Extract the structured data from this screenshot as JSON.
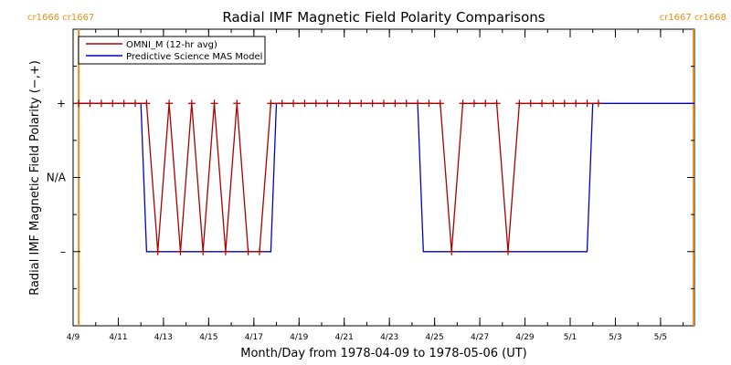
{
  "chart_data": {
    "type": "line",
    "title": "Radial IMF Magnetic Field Polarity Comparisons",
    "xlabel": "Month/Day from 1978-04-09 to 1978-05-06 (UT)",
    "ylabel": "Radial IMF Magnetic Field Polarity (−,+)",
    "x_unit": "date (UT)",
    "xlim": [
      "1978-04-09T00:00",
      "1978-05-06T12:00"
    ],
    "y_ticks": [
      {
        "value": 1,
        "label": "+"
      },
      {
        "value": 0,
        "label": "N/A"
      },
      {
        "value": -1,
        "label": "–"
      }
    ],
    "ylim": [
      -2,
      2
    ],
    "x_tick_labels": [
      "4/9",
      "4/11",
      "4/13",
      "4/15",
      "4/17",
      "4/19",
      "4/21",
      "4/23",
      "4/25",
      "4/27",
      "4/29",
      "5/1",
      "5/3",
      "5/5"
    ],
    "x_tick_dates": [
      "1978-04-09",
      "1978-04-11",
      "1978-04-13",
      "1978-04-15",
      "1978-04-17",
      "1978-04-19",
      "1978-04-21",
      "1978-04-23",
      "1978-04-25",
      "1978-04-27",
      "1978-04-29",
      "1978-05-01",
      "1978-05-03",
      "1978-05-05"
    ],
    "legend_position": "top-left",
    "rotation_markers": [
      {
        "label": "cr1666 cr1667",
        "date": "1978-04-09T06:00",
        "side": "left"
      },
      {
        "label": "cr1667 cr1668",
        "date": "1978-05-06T12:00",
        "side": "right"
      }
    ],
    "series": [
      {
        "name": "OMNI_M (12-hr avg)",
        "color": "#aa0000",
        "marker": "plus",
        "points": [
          [
            "1978-04-09T06:00",
            1
          ],
          [
            "1978-04-09T18:00",
            1
          ],
          [
            "1978-04-10T06:00",
            1
          ],
          [
            "1978-04-10T18:00",
            1
          ],
          [
            "1978-04-11T06:00",
            1
          ],
          [
            "1978-04-11T18:00",
            1
          ],
          [
            "1978-04-12T06:00",
            1
          ],
          [
            "1978-04-12T18:00",
            -1
          ],
          [
            "1978-04-13T06:00",
            1
          ],
          [
            "1978-04-13T18:00",
            -1
          ],
          [
            "1978-04-14T06:00",
            1
          ],
          [
            "1978-04-14T18:00",
            -1
          ],
          [
            "1978-04-15T06:00",
            1
          ],
          [
            "1978-04-15T18:00",
            -1
          ],
          [
            "1978-04-16T06:00",
            1
          ],
          [
            "1978-04-16T18:00",
            -1
          ],
          [
            "1978-04-17T06:00",
            -1
          ],
          [
            "1978-04-17T18:00",
            1
          ],
          [
            "1978-04-18T06:00",
            1
          ],
          [
            "1978-04-18T18:00",
            1
          ],
          [
            "1978-04-19T06:00",
            1
          ],
          [
            "1978-04-19T18:00",
            1
          ],
          [
            "1978-04-20T06:00",
            1
          ],
          [
            "1978-04-20T18:00",
            1
          ],
          [
            "1978-04-21T06:00",
            1
          ],
          [
            "1978-04-21T18:00",
            1
          ],
          [
            "1978-04-22T06:00",
            1
          ],
          [
            "1978-04-22T18:00",
            1
          ],
          [
            "1978-04-23T06:00",
            1
          ],
          [
            "1978-04-23T18:00",
            1
          ],
          [
            "1978-04-24T06:00",
            1
          ],
          [
            "1978-04-24T18:00",
            1
          ],
          [
            "1978-04-25T06:00",
            1
          ],
          [
            "1978-04-25T18:00",
            -1
          ],
          [
            "1978-04-26T06:00",
            1
          ],
          [
            "1978-04-26T18:00",
            1
          ],
          [
            "1978-04-27T06:00",
            1
          ],
          [
            "1978-04-27T18:00",
            1
          ],
          [
            "1978-04-28T06:00",
            -1
          ],
          [
            "1978-04-28T18:00",
            1
          ],
          [
            "1978-04-29T06:00",
            1
          ],
          [
            "1978-04-29T18:00",
            1
          ],
          [
            "1978-04-30T06:00",
            1
          ],
          [
            "1978-04-30T18:00",
            1
          ],
          [
            "1978-05-01T06:00",
            1
          ],
          [
            "1978-05-01T18:00",
            1
          ],
          [
            "1978-05-02T06:00",
            1
          ]
        ]
      },
      {
        "name": "Predictive Science MAS Model",
        "color": "#0000cc",
        "marker": "none",
        "points": [
          [
            "1978-04-09T06:00",
            1
          ],
          [
            "1978-04-12T00:00",
            1
          ],
          [
            "1978-04-12T06:00",
            -1
          ],
          [
            "1978-04-17T18:00",
            -1
          ],
          [
            "1978-04-18T00:00",
            1
          ],
          [
            "1978-04-24T06:00",
            1
          ],
          [
            "1978-04-24T12:00",
            -1
          ],
          [
            "1978-05-01T18:00",
            -1
          ],
          [
            "1978-05-02T00:00",
            1
          ],
          [
            "1978-05-06T12:00",
            1
          ]
        ]
      }
    ]
  }
}
